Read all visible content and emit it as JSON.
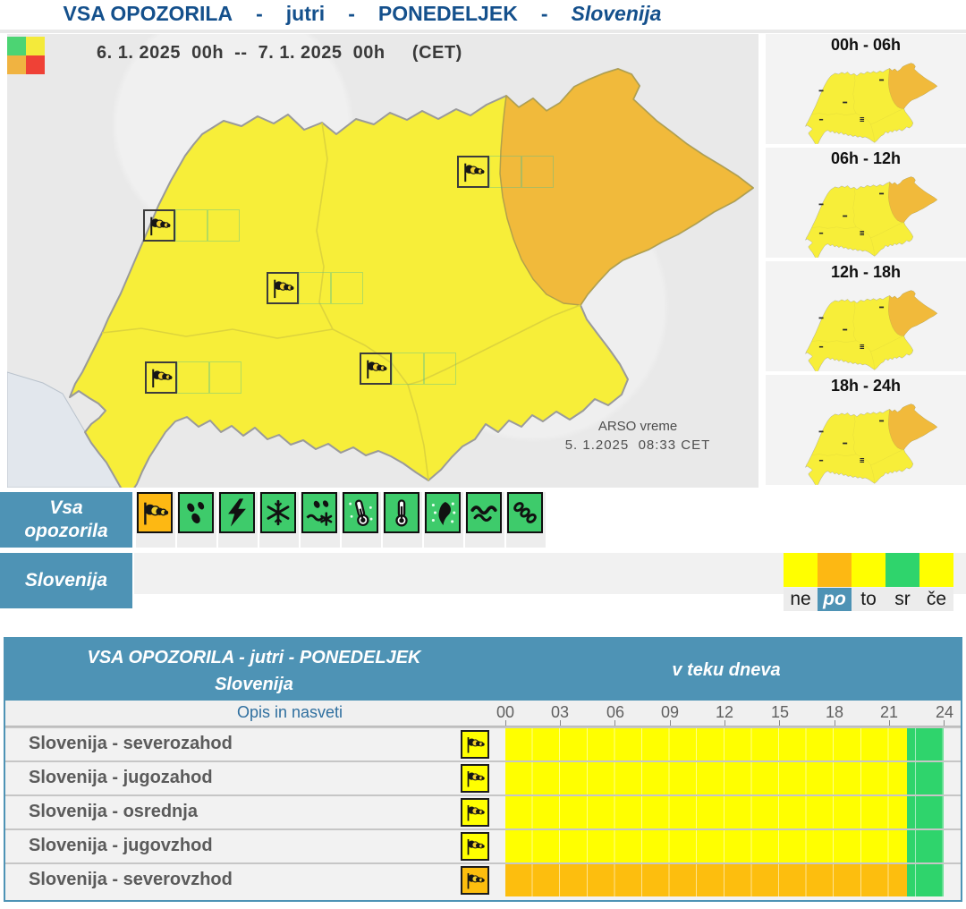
{
  "colors": {
    "teal": "#4e93b5",
    "icon_green": "#3ecb6b",
    "icon_active_bg": "#fdb813",
    "legend_green": "#4cd473",
    "legend_yellow": "#f4ea3a",
    "legend_orange": "#f0b341",
    "legend_red": "#ef4136",
    "map_yellow": "#f7ee39",
    "map_orange": "#f1ba3b"
  },
  "header": {
    "title": "VSA OPOZORILA",
    "sep1": "-",
    "mode": "jutri",
    "sep2": "-",
    "day": "PONEDELJEK",
    "sep3": "-",
    "region": "Slovenija"
  },
  "map": {
    "date_range": "6. 1. 2025  00h  --  7. 1. 2025  00h     (CET)",
    "credit_line1": "ARSO vreme",
    "credit_line2": "5. 1.2025  08:33 CET"
  },
  "mini_maps": [
    {
      "label": "00h - 06h"
    },
    {
      "label": "06h - 12h"
    },
    {
      "label": "12h - 18h"
    },
    {
      "label": "18h - 24h"
    }
  ],
  "warning_bar": {
    "label_line1": "Vsa",
    "label_line2": "opozorila",
    "icons": [
      {
        "name": "wind",
        "active": true
      },
      {
        "name": "rain",
        "active": false
      },
      {
        "name": "thunderstorm",
        "active": false
      },
      {
        "name": "snow",
        "active": false
      },
      {
        "name": "sleet",
        "active": false
      },
      {
        "name": "low-temperature",
        "active": false
      },
      {
        "name": "high-temperature",
        "active": false
      },
      {
        "name": "freezing-rain",
        "active": false
      },
      {
        "name": "sea",
        "active": false
      },
      {
        "name": "fog",
        "active": false
      }
    ]
  },
  "region_bar": {
    "label": "Slovenija",
    "days": [
      {
        "label": "ne",
        "color": "#ffff00",
        "selected": false
      },
      {
        "label": "po",
        "color": "#fdb813",
        "selected": true
      },
      {
        "label": "to",
        "color": "#ffff00",
        "selected": false
      },
      {
        "label": "sr",
        "color": "#2fd46c",
        "selected": false
      },
      {
        "label": "če",
        "color": "#ffff00",
        "selected": false
      }
    ]
  },
  "table": {
    "title_line1": "VSA OPOZORILA - jutri - PONEDELJEK",
    "title_line2": "Slovenija",
    "col_header": "v teku dneva",
    "desc_header": "Opis in nasveti",
    "hours": [
      "00",
      "03",
      "06",
      "09",
      "12",
      "15",
      "18",
      "21",
      "24"
    ],
    "rows": [
      {
        "label": "Slovenija - severozahod",
        "icon": "wind",
        "icon_bg": "#ffff00",
        "segments": [
          {
            "from": 0,
            "to": 22,
            "color": "#ffff00"
          },
          {
            "from": 22,
            "to": 24,
            "color": "#2fd46c"
          }
        ]
      },
      {
        "label": "Slovenija - jugozahod",
        "icon": "wind",
        "icon_bg": "#ffff00",
        "segments": [
          {
            "from": 0,
            "to": 22,
            "color": "#ffff00"
          },
          {
            "from": 22,
            "to": 24,
            "color": "#2fd46c"
          }
        ]
      },
      {
        "label": "Slovenija - osrednja",
        "icon": "wind",
        "icon_bg": "#ffff00",
        "segments": [
          {
            "from": 0,
            "to": 22,
            "color": "#ffff00"
          },
          {
            "from": 22,
            "to": 24,
            "color": "#2fd46c"
          }
        ]
      },
      {
        "label": "Slovenija - jugovzhod",
        "icon": "wind",
        "icon_bg": "#ffff00",
        "segments": [
          {
            "from": 0,
            "to": 22,
            "color": "#ffff00"
          },
          {
            "from": 22,
            "to": 24,
            "color": "#2fd46c"
          }
        ]
      },
      {
        "label": "Slovenija - severovzhod",
        "icon": "wind",
        "icon_bg": "#fdbe0e",
        "segments": [
          {
            "from": 0,
            "to": 22,
            "color": "#fdbe0e"
          },
          {
            "from": 22,
            "to": 24,
            "color": "#2fd46c"
          }
        ]
      }
    ]
  }
}
